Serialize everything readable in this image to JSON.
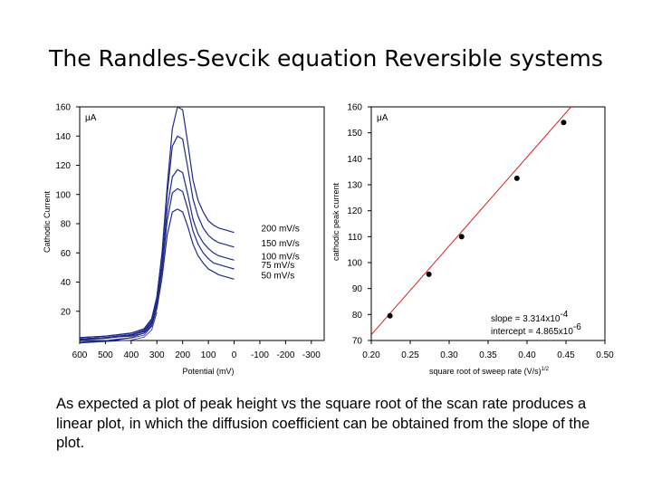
{
  "slide": {
    "title": "The Randles-Sevcik equation Reversible systems",
    "caption": "As expected a plot of peak height vs the square root of the scan rate produces a linear plot, in which the diffusion coefficient can be obtained from the slope of the plot."
  },
  "chart_data": [
    {
      "type": "line",
      "xlabel": "Potential (mV)",
      "ylabel": "Cathodic Current",
      "unit_label": "μA",
      "x_ticks": [
        "600",
        "500",
        "400",
        "300",
        "200",
        "100",
        "0",
        "-100",
        "-200",
        "-300"
      ],
      "y_ticks": [
        "20",
        "40",
        "60",
        "80",
        "100",
        "120",
        "140",
        "160"
      ],
      "xlim": [
        600,
        -350
      ],
      "ylim": [
        0,
        160
      ],
      "grid": false,
      "series": [
        {
          "name": "200 mV/s",
          "x": [
            600,
            500,
            400,
            350,
            320,
            300,
            280,
            260,
            240,
            220,
            200,
            180,
            160,
            140,
            120,
            100,
            80,
            60,
            40,
            20,
            0
          ],
          "y": [
            2,
            3,
            5,
            8,
            15,
            30,
            60,
            105,
            145,
            160,
            158,
            135,
            110,
            96,
            88,
            82,
            79,
            77,
            76,
            75,
            74
          ]
        },
        {
          "name": "150 mV/s",
          "x": [
            600,
            500,
            400,
            350,
            320,
            300,
            280,
            260,
            240,
            220,
            200,
            180,
            160,
            140,
            120,
            100,
            80,
            60,
            40,
            20,
            0
          ],
          "y": [
            2,
            3,
            5,
            8,
            15,
            30,
            58,
            100,
            133,
            140,
            138,
            118,
            97,
            85,
            77,
            72,
            69,
            67,
            66,
            65,
            64
          ]
        },
        {
          "name": "100 mV/s",
          "x": [
            600,
            500,
            400,
            350,
            320,
            300,
            280,
            260,
            240,
            220,
            200,
            180,
            160,
            140,
            120,
            100,
            80,
            60,
            40,
            20,
            0
          ],
          "y": [
            1,
            2,
            4,
            7,
            13,
            27,
            52,
            90,
            112,
            117,
            115,
            100,
            83,
            73,
            67,
            63,
            60,
            58,
            57,
            56,
            55
          ]
        },
        {
          "name": "75 mV/s",
          "x": [
            600,
            500,
            400,
            350,
            320,
            300,
            280,
            260,
            240,
            220,
            200,
            180,
            160,
            140,
            120,
            100,
            80,
            60,
            40,
            20,
            0
          ],
          "y": [
            1,
            2,
            4,
            6,
            12,
            25,
            48,
            82,
            101,
            104,
            102,
            90,
            75,
            66,
            60,
            56,
            53,
            52,
            51,
            50,
            49
          ]
        },
        {
          "name": "50 mV/s",
          "x": [
            600,
            500,
            400,
            350,
            320,
            300,
            280,
            260,
            240,
            220,
            200,
            180,
            160,
            140,
            120,
            100,
            80,
            60,
            40,
            20,
            0
          ],
          "y": [
            1,
            2,
            3,
            5,
            10,
            22,
            43,
            72,
            88,
            90,
            88,
            78,
            66,
            58,
            53,
            49,
            47,
            45,
            44,
            43,
            42
          ]
        }
      ]
    },
    {
      "type": "scatter",
      "xlabel": "square root of sweep rate (V/s)",
      "xlabel_sup": "1/2",
      "ylabel": "cathodic peak current",
      "unit_label": "μA",
      "x_ticks": [
        "0.20",
        "0.25",
        "0.30",
        "0.35",
        "0.40",
        "0.45",
        "0.50"
      ],
      "y_ticks": [
        "70",
        "80",
        "90",
        "100",
        "110",
        "120",
        "130",
        "140",
        "150",
        "160"
      ],
      "xlim": [
        0.2,
        0.5
      ],
      "ylim": [
        70,
        160
      ],
      "grid": false,
      "points": {
        "x": [
          0.224,
          0.274,
          0.316,
          0.387,
          0.447
        ],
        "y": [
          79.5,
          95.5,
          110,
          132.5,
          154
        ]
      },
      "fit_line": {
        "x": [
          0.2,
          0.4565
        ],
        "y": [
          72.2,
          160
        ]
      },
      "slope_label": "slope = 3.314x10",
      "slope_exp": "-4",
      "intercept_label": "intercept = 4.865x10",
      "intercept_exp": "-6"
    }
  ]
}
